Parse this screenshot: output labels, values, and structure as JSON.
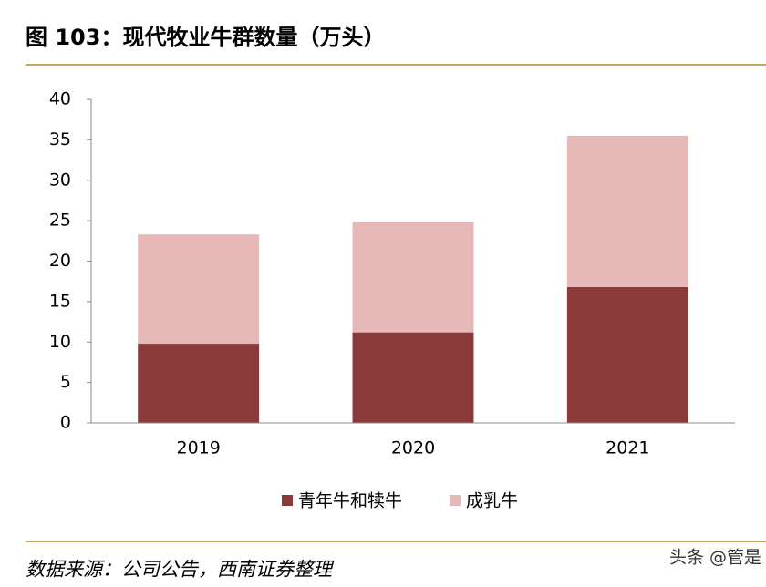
{
  "chart_data": {
    "type": "stacked-bar",
    "title": "图 103：现代牧业牛群数量（万头）",
    "categories": [
      "2019",
      "2020",
      "2021"
    ],
    "series": [
      {
        "name": "青年牛和犊牛",
        "color": "#8b3a3a",
        "values": [
          9.8,
          11.2,
          16.8
        ]
      },
      {
        "name": "成乳牛",
        "color": "#e6b8b7",
        "values": [
          13.5,
          13.6,
          18.7
        ]
      }
    ],
    "ylim": [
      0,
      40
    ],
    "yticks": [
      0,
      5,
      10,
      15,
      20,
      25,
      30,
      35,
      40
    ],
    "legend": "bottom",
    "source": "数据来源：公司公告，西南证券整理",
    "watermark": "头条 @管是"
  }
}
